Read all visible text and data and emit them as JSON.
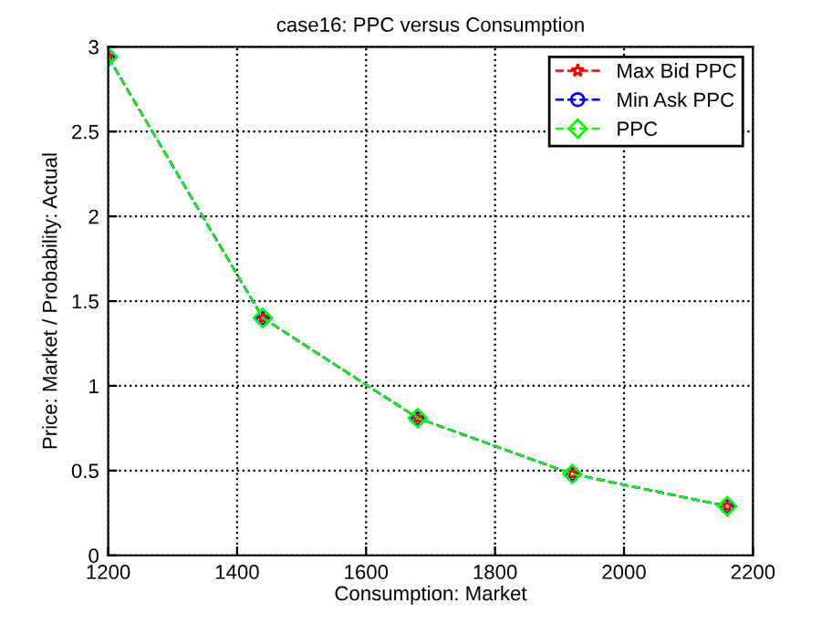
{
  "chart_data": {
    "type": "line",
    "title": "case16: PPC versus Consumption",
    "xlabel": "Consumption: Market",
    "ylabel": "Price: Market / Probability: Actual",
    "x": [
      1200,
      1440,
      1680,
      1920,
      2160
    ],
    "series": [
      {
        "name": "Max Bid PPC",
        "color": "#ff0000",
        "marker": "star",
        "values": [
          2.94,
          1.4,
          0.81,
          0.48,
          0.29
        ]
      },
      {
        "name": "Min Ask PPC",
        "color": "#0000ff",
        "marker": "circle",
        "values": [
          2.94,
          1.4,
          0.81,
          0.48,
          0.29
        ]
      },
      {
        "name": "PPC",
        "color": "#00ff00",
        "marker": "diamond",
        "values": [
          2.94,
          1.4,
          0.81,
          0.48,
          0.29
        ]
      }
    ],
    "line_style": "dashed",
    "xlim": [
      1200,
      2200
    ],
    "xticks": [
      1200,
      1400,
      1600,
      1800,
      2000,
      2200
    ],
    "ylim": [
      0,
      3
    ],
    "yticks": [
      0,
      0.5,
      1,
      1.5,
      2,
      2.5,
      3
    ],
    "grid": true,
    "legend": "top right"
  }
}
